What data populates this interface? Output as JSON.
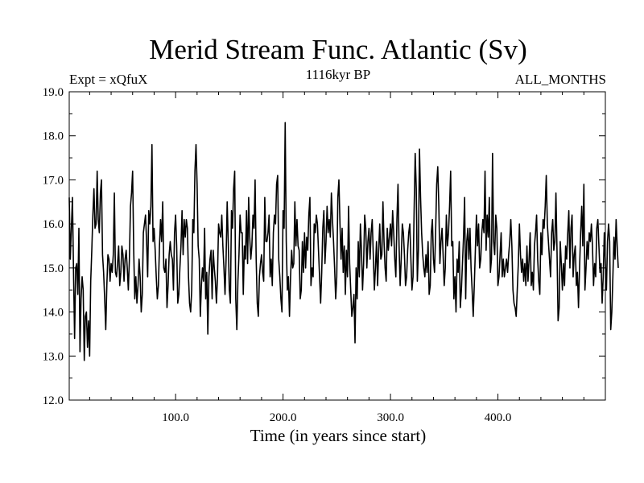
{
  "chart_data": {
    "type": "line",
    "title": "Merid Stream Func. Atlantic (Sv)",
    "subtitle_left": "Expt = xQfuX",
    "subtitle_center": "1116kyr BP",
    "subtitle_right": "ALL_MONTHS",
    "xlabel": "Time (in years since start)",
    "ylabel": "",
    "xlim": [
      1,
      500
    ],
    "ylim": [
      12.0,
      19.0
    ],
    "x_ticks": [
      100,
      200,
      300,
      400
    ],
    "x_tick_labels": [
      "100.0",
      "200.0",
      "300.0",
      "400.0"
    ],
    "y_ticks": [
      12,
      13,
      14,
      15,
      16,
      17,
      18,
      19
    ],
    "y_tick_labels": [
      "12.0",
      "13.0",
      "14.0",
      "15.0",
      "16.0",
      "17.0",
      "18.0",
      "19.0"
    ],
    "grid": false,
    "series": [
      {
        "name": "Merid Stream Func. Atlantic",
        "x_start": 1,
        "x_step": 1,
        "values": [
          16.6,
          15.2,
          15.9,
          16.6,
          14.9,
          13.4,
          15.0,
          15.1,
          14.4,
          15.9,
          13.1,
          14.3,
          14.8,
          14.5,
          12.9,
          13.9,
          14.0,
          13.2,
          13.8,
          13.0,
          14.7,
          15.4,
          16.2,
          16.8,
          15.9,
          16.0,
          17.2,
          16.1,
          15.8,
          16.7,
          17.0,
          15.3,
          14.9,
          14.3,
          13.6,
          14.6,
          15.3,
          15.2,
          14.7,
          15.1,
          14.9,
          15.3,
          16.7,
          14.9,
          14.8,
          15.1,
          15.5,
          14.6,
          14.9,
          15.5,
          15.3,
          14.7,
          15.2,
          15.4,
          15.0,
          14.5,
          15.2,
          16.4,
          16.7,
          17.2,
          15.4,
          14.3,
          14.8,
          14.2,
          14.6,
          15.2,
          14.8,
          14.0,
          14.4,
          15.8,
          16.0,
          16.2,
          15.6,
          14.8,
          16.3,
          16.0,
          16.4,
          17.8,
          15.6,
          15.9,
          15.4,
          14.8,
          14.3,
          14.6,
          15.5,
          16.1,
          15.6,
          16.5,
          15.0,
          14.9,
          15.2,
          14.1,
          14.6,
          15.3,
          15.6,
          15.3,
          15.2,
          14.5,
          15.8,
          16.2,
          15.5,
          14.2,
          14.4,
          15.0,
          15.5,
          16.3,
          15.3,
          16.1,
          15.7,
          16.1,
          15.9,
          14.8,
          14.2,
          14.0,
          14.5,
          16.1,
          15.8,
          17.2,
          17.8,
          16.9,
          15.5,
          15.2,
          13.9,
          14.6,
          15.0,
          14.7,
          15.9,
          14.3,
          14.9,
          13.5,
          14.8,
          15.2,
          15.4,
          14.3,
          15.4,
          15.0,
          14.7,
          14.2,
          14.8,
          16.0,
          15.8,
          15.7,
          16.2,
          15.5,
          15.0,
          14.4,
          15.2,
          16.5,
          15.6,
          14.5,
          14.2,
          16.3,
          15.9,
          16.8,
          17.2,
          14.3,
          13.6,
          14.7,
          15.3,
          16.2,
          15.8,
          15.8,
          14.4,
          15.5,
          15.2,
          16.3,
          15.1,
          16.6,
          15.7,
          15.2,
          15.5,
          16.2,
          15.9,
          17.0,
          15.2,
          14.2,
          13.9,
          14.8,
          15.1,
          15.3,
          14.9,
          14.7,
          16.6,
          15.6,
          15.6,
          15.8,
          16.2,
          14.8,
          15.2,
          14.6,
          15.8,
          16.2,
          16.0,
          16.9,
          17.1,
          15.2,
          14.8,
          14.3,
          14.0,
          16.3,
          15.9,
          18.3,
          15.6,
          14.5,
          14.8,
          13.9,
          14.8,
          15.4,
          15.0,
          15.1,
          16.5,
          15.5,
          16.1,
          15.5,
          15.4,
          14.3,
          14.5,
          15.6,
          14.9,
          15.8,
          15.0,
          15.7,
          15.4,
          16.2,
          16.6,
          14.6,
          15.0,
          14.8,
          16.0,
          15.8,
          16.2,
          16.0,
          15.4,
          14.8,
          14.2,
          14.9,
          15.9,
          16.3,
          15.1,
          15.6,
          16.4,
          15.8,
          16.1,
          15.7,
          16.7,
          16.1,
          15.6,
          15.0,
          14.3,
          14.8,
          16.6,
          17.0,
          16.0,
          15.2,
          15.9,
          14.9,
          15.5,
          14.4,
          15.4,
          14.8,
          16.4,
          15.1,
          14.5,
          13.9,
          14.1,
          14.4,
          13.3,
          15.0,
          14.3,
          15.6,
          14.8,
          16.0,
          15.4,
          14.5,
          15.1,
          16.2,
          15.9,
          15.0,
          15.6,
          15.9,
          15.2,
          15.8,
          16.1,
          15.3,
          14.5,
          15.0,
          15.6,
          14.6,
          15.4,
          16.0,
          15.2,
          15.3,
          16.5,
          15.6,
          15.0,
          14.7,
          15.9,
          15.4,
          15.7,
          16.0,
          15.5,
          16.3,
          15.8,
          15.2,
          14.8,
          16.1,
          16.9,
          15.5,
          14.6,
          15.2,
          16.0,
          15.8,
          15.3,
          14.6,
          14.8,
          15.4,
          15.8,
          16.0,
          15.2,
          14.5,
          14.8,
          16.3,
          17.6,
          16.8,
          14.7,
          15.4,
          17.7,
          16.6,
          15.8,
          15.3,
          15.0,
          14.8,
          15.3,
          14.9,
          15.6,
          14.4,
          14.6,
          15.8,
          16.1,
          15.2,
          14.9,
          15.8,
          16.9,
          17.3,
          16.4,
          15.1,
          15.6,
          15.9,
          15.3,
          14.6,
          15.0,
          16.2,
          15.5,
          15.8,
          16.4,
          17.2,
          15.5,
          15.6,
          14.3,
          14.8,
          14.0,
          15.2,
          14.9,
          15.6,
          14.1,
          14.5,
          15.1,
          15.7,
          16.6,
          14.3,
          15.6,
          15.9,
          15.2,
          15.9,
          15.0,
          14.5,
          13.9,
          14.6,
          15.4,
          16.2,
          15.5,
          16.0,
          15.0,
          15.2,
          15.8,
          16.1,
          15.8,
          17.2,
          15.4,
          16.2,
          15.7,
          16.6,
          14.9,
          15.2,
          17.6,
          15.6,
          15.3,
          16.2,
          15.9,
          14.6,
          14.8,
          15.3,
          15.8,
          14.8,
          15.2,
          14.8,
          15.0,
          15.2,
          14.9,
          15.3,
          15.6,
          16.1,
          15.5,
          14.5,
          14.2,
          14.1,
          13.9,
          14.5,
          15.1,
          16.0,
          15.3,
          14.9,
          15.2,
          14.7,
          15.1,
          14.6,
          15.5,
          14.7,
          15.2,
          15.8,
          14.6,
          14.9,
          14.5,
          15.5,
          15.8,
          16.2,
          15.2,
          14.7,
          14.4,
          15.8,
          15.3,
          16.1,
          15.9,
          16.4,
          17.1,
          16.0,
          15.6,
          15.2,
          14.8,
          15.8,
          16.1,
          15.4,
          15.6,
          16.7,
          15.4,
          13.8,
          14.1,
          15.6,
          15.1,
          14.5,
          15.1,
          14.6,
          15.5,
          15.2,
          15.8,
          16.3,
          15.0,
          15.9,
          16.2,
          14.8,
          15.3,
          15.5,
          14.6,
          14.9,
          14.1,
          15.0,
          15.8,
          16.4,
          15.5,
          16.9,
          14.5,
          15.0,
          15.6,
          15.2,
          15.8,
          15.6,
          16.0,
          15.5,
          14.6,
          15.1,
          14.8,
          15.9,
          16.1,
          15.5,
          14.9,
          15.1,
          14.2,
          14.8,
          15.8,
          15.1,
          14.5,
          15.6,
          16.0,
          15.6,
          13.6,
          14.0,
          14.8,
          15.7,
          15.2,
          16.1,
          15.5,
          15.0
        ]
      }
    ]
  }
}
